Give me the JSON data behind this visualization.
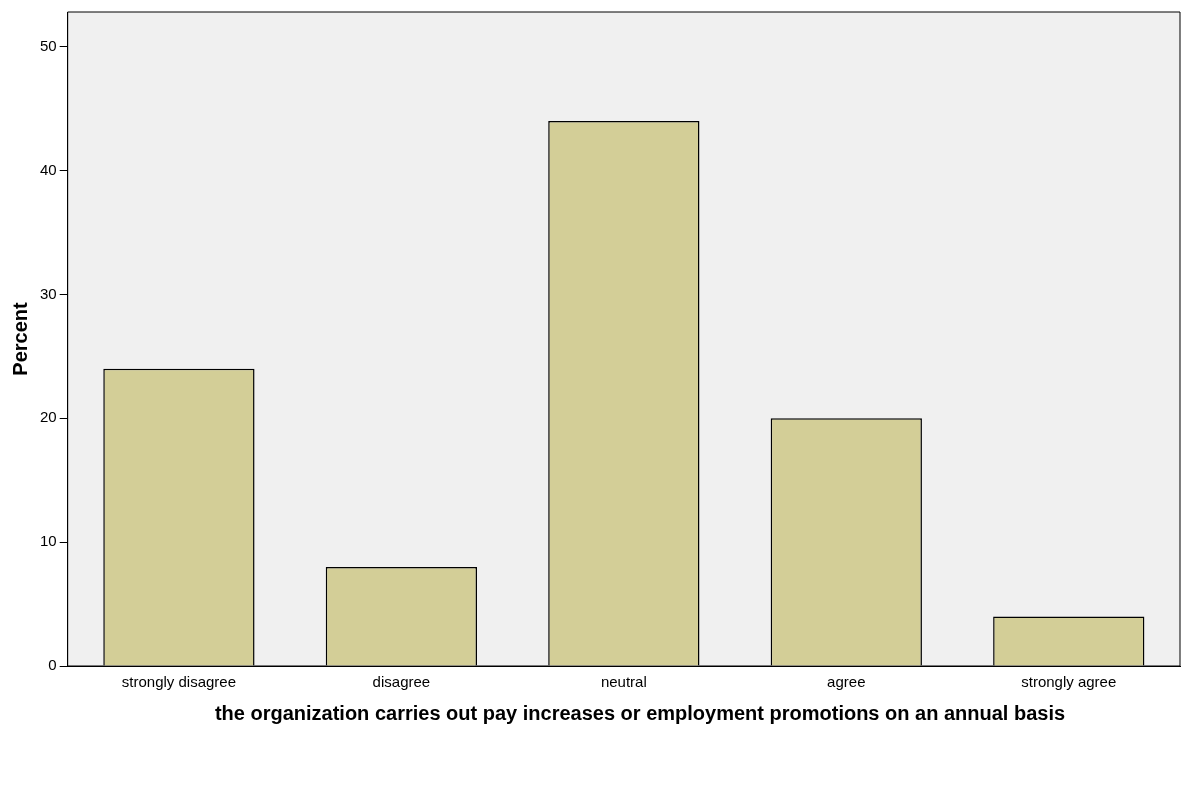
{
  "chart_data": {
    "type": "bar",
    "xlabel": "the organization carries out pay increases or employment promotions on an annual basis",
    "ylabel": "Percent",
    "categories": [
      "strongly disagree",
      "disagree",
      "neutral",
      "agree",
      "strongly agree"
    ],
    "values": [
      24,
      8,
      44,
      20,
      4
    ],
    "color": "#d3ce97",
    "ylim": [
      0,
      52.8
    ],
    "yticks": [
      0,
      10,
      20,
      30,
      40,
      50
    ],
    "grid": false,
    "legend": false
  }
}
